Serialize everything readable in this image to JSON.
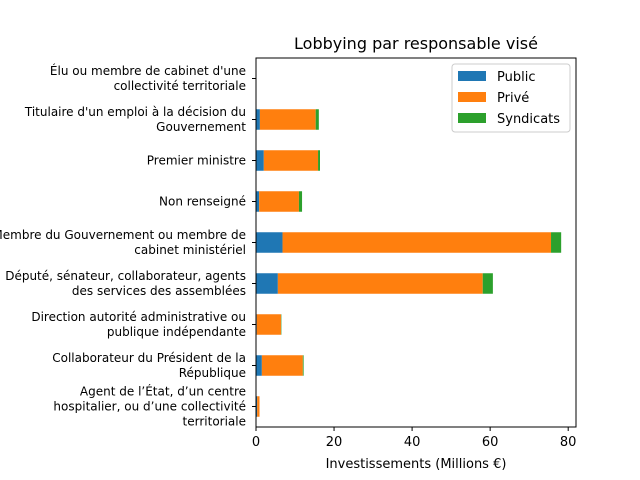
{
  "chart_data": {
    "type": "bar",
    "orientation": "horizontal",
    "stacked": true,
    "title": "Lobbying par responsable visé",
    "xlabel": "Investissements (Millions €)",
    "ylabel": "",
    "xlim": [
      0,
      82
    ],
    "xticks": [
      0,
      20,
      40,
      60,
      80
    ],
    "grid": false,
    "legend_position": "top-right",
    "categories": [
      [
        "Élu ou membre de cabinet d'une",
        "collectivité territoriale"
      ],
      [
        "Titulaire d'un emploi à la décision du",
        "Gouvernement"
      ],
      [
        "Premier ministre"
      ],
      [
        "Non renseigné"
      ],
      [
        "Membre du Gouvernement ou membre de",
        "cabinet ministériel"
      ],
      [
        "Député, sénateur, collaborateur, agents",
        "des services des assemblées"
      ],
      [
        "Direction autorité administrative ou",
        "publique indépendante"
      ],
      [
        "Collaborateur du Président de la",
        "République"
      ],
      [
        "Agent de l’État, d’un centre",
        "hospitalier, ou d’une collectivité",
        "territoriale"
      ]
    ],
    "series": [
      {
        "name": "Public",
        "color": "#1f77b4",
        "values": [
          0.0,
          1.0,
          2.0,
          0.8,
          6.8,
          5.6,
          0.2,
          1.5,
          0.3
        ]
      },
      {
        "name": "Privé",
        "color": "#ff7f0e",
        "values": [
          0.0,
          14.3,
          13.9,
          10.2,
          68.8,
          52.5,
          6.2,
          10.5,
          0.6
        ]
      },
      {
        "name": "Syndicats",
        "color": "#2ca02c",
        "values": [
          0.0,
          0.8,
          0.5,
          0.8,
          2.6,
          2.6,
          0.1,
          0.2,
          0.0
        ]
      }
    ]
  }
}
